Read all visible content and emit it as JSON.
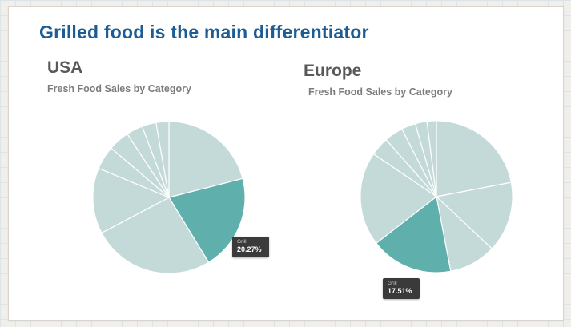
{
  "slide": {
    "title": "Grilled food is the main differentiator",
    "title_color": "#1e5c94"
  },
  "chart_data": [
    {
      "type": "pie",
      "region": "USA",
      "title": "Fresh Food Sales by Category",
      "legend_position": "none",
      "labeled_slice": {
        "label": "Grill",
        "value_pct": 20.27
      },
      "tooltip": {
        "label": "Grill",
        "value": "20.27%"
      },
      "start_angle_deg": -90,
      "slices": [
        {
          "label": "",
          "value": 21.0,
          "highlight": false
        },
        {
          "label": "Grill",
          "value": 20.27,
          "highlight": true
        },
        {
          "label": "",
          "value": 26.0,
          "highlight": false
        },
        {
          "label": "",
          "value": 14.0,
          "highlight": false
        },
        {
          "label": "",
          "value": 5.0,
          "highlight": false
        },
        {
          "label": "",
          "value": 4.5,
          "highlight": false
        },
        {
          "label": "",
          "value": 3.5,
          "highlight": false
        },
        {
          "label": "",
          "value": 3.0,
          "highlight": false
        },
        {
          "label": "",
          "value": 2.73,
          "highlight": false
        }
      ],
      "colors": {
        "base": "#c4dad9",
        "highlight": "#5fb0ac",
        "separator": "#ffffff"
      }
    },
    {
      "type": "pie",
      "region": "Europe",
      "title": "Fresh Food Sales by Category",
      "legend_position": "none",
      "labeled_slice": {
        "label": "Grill",
        "value_pct": 17.51
      },
      "tooltip": {
        "label": "Grill",
        "value": "17.51%"
      },
      "start_angle_deg": -90,
      "slices": [
        {
          "label": "",
          "value": 22.0,
          "highlight": false
        },
        {
          "label": "",
          "value": 15.0,
          "highlight": false
        },
        {
          "label": "",
          "value": 10.0,
          "highlight": false
        },
        {
          "label": "Grill",
          "value": 17.51,
          "highlight": true
        },
        {
          "label": "",
          "value": 20.0,
          "highlight": false
        },
        {
          "label": "",
          "value": 4.0,
          "highlight": false
        },
        {
          "label": "",
          "value": 4.0,
          "highlight": false
        },
        {
          "label": "",
          "value": 3.0,
          "highlight": false
        },
        {
          "label": "",
          "value": 2.49,
          "highlight": false
        },
        {
          "label": "",
          "value": 2.0,
          "highlight": false
        }
      ],
      "colors": {
        "base": "#c4dad9",
        "highlight": "#5fb0ac",
        "separator": "#ffffff"
      }
    }
  ]
}
